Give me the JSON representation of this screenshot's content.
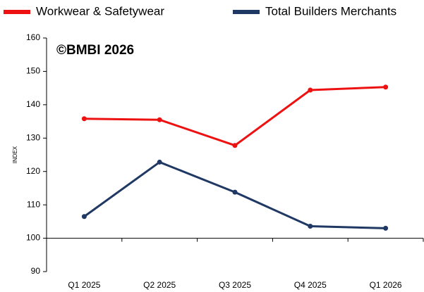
{
  "chart_data": {
    "type": "line",
    "categories": [
      "Q1 2025",
      "Q2 2025",
      "Q3 2025",
      "Q4 2025",
      "Q1 2026"
    ],
    "series": [
      {
        "name": "Workwear & Safetywear",
        "color": "#ee1111",
        "values": [
          135.8,
          135.5,
          127.8,
          144.4,
          145.3
        ]
      },
      {
        "name": "Total Builders Merchants",
        "color": "#1f3864",
        "values": [
          106.5,
          122.8,
          113.8,
          103.6,
          103.0
        ]
      }
    ],
    "ylabel": "INDEX",
    "annotation": "©BMBI 2026",
    "ylim": [
      90,
      160
    ],
    "yticks": [
      90,
      100,
      110,
      120,
      130,
      140,
      150,
      160
    ],
    "x_axis_crosses": 100,
    "grid": false,
    "legend": "top"
  }
}
